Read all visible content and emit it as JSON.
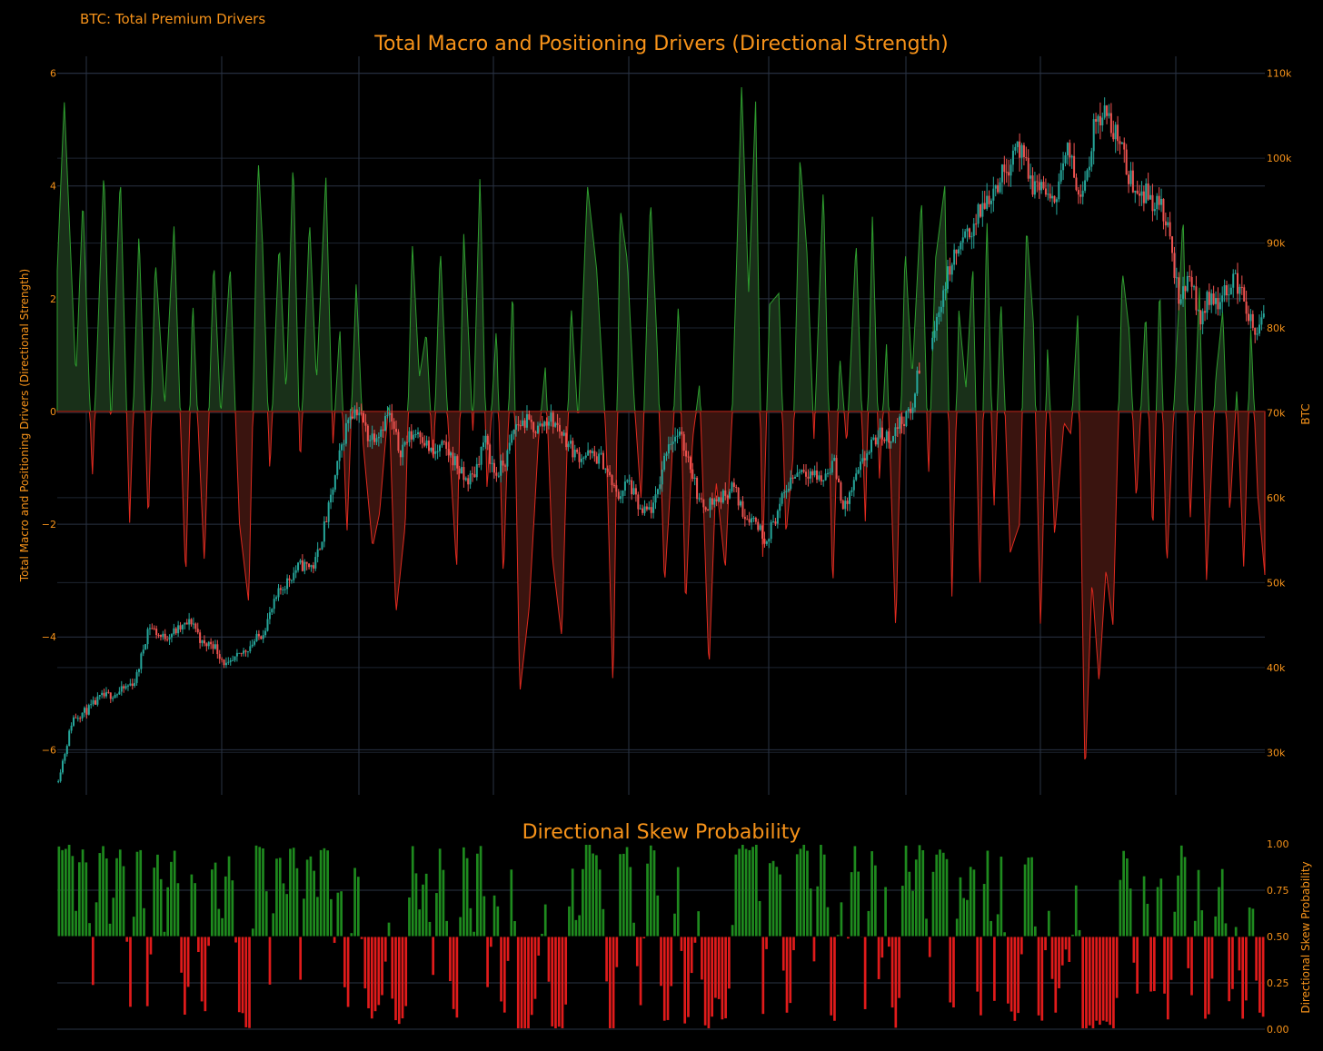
{
  "header": {
    "corner_label": "BTC: Total Premium Drivers"
  },
  "colors": {
    "background": "#000000",
    "title_orange": "#f7931a",
    "grid": "#2a3344",
    "positive_fill": "#193019",
    "positive_line": "#2e9d2e",
    "negative_fill": "#3a140f",
    "negative_line": "#e02a1f",
    "candle_up": "#26a69a",
    "candle_down": "#ef5350",
    "bar_green": "#1e8a1e",
    "bar_red": "#e01b1b"
  },
  "chart_data": [
    {
      "type": "area",
      "title": "Total Macro and Positioning Drivers (Directional Strength)",
      "ylabel": "Total Macro and Positioning Drivers (Directional Strength)",
      "ylim": [
        -6.8,
        6.3
      ],
      "yticks": [
        6,
        4,
        2,
        0,
        -2,
        -4,
        -6
      ],
      "ytick_labels": [
        "6",
        "4",
        "2",
        "0",
        "−2",
        "−4",
        "−6"
      ],
      "zero_line": true,
      "grid": true,
      "anchors_drivers": [
        [
          0,
          2.5
        ],
        [
          3,
          5.5
        ],
        [
          8,
          0.6
        ],
        [
          11,
          3.8
        ],
        [
          15,
          -1.2
        ],
        [
          20,
          4.3
        ],
        [
          23,
          -0.3
        ],
        [
          27,
          4.2
        ],
        [
          31,
          -2.0
        ],
        [
          35,
          3.2
        ],
        [
          39,
          -2.0
        ],
        [
          42,
          2.7
        ],
        [
          46,
          0.1
        ],
        [
          50,
          3.3
        ],
        [
          55,
          -3.0
        ],
        [
          58,
          2.0
        ],
        [
          60,
          0.0
        ],
        [
          63,
          -2.7
        ],
        [
          67,
          2.7
        ],
        [
          70,
          -0.1
        ],
        [
          74,
          2.6
        ],
        [
          78,
          -2.0
        ],
        [
          82,
          -3.4
        ],
        [
          86,
          4.5
        ],
        [
          88,
          2.9
        ],
        [
          91,
          -1.1
        ],
        [
          95,
          3.0
        ],
        [
          98,
          0.3
        ],
        [
          101,
          4.5
        ],
        [
          104,
          -1.0
        ],
        [
          108,
          3.4
        ],
        [
          111,
          0.5
        ],
        [
          115,
          4.2
        ],
        [
          118,
          -0.6
        ],
        [
          121,
          1.5
        ],
        [
          124,
          -2.2
        ],
        [
          128,
          2.3
        ],
        [
          131,
          -0.6
        ],
        [
          135,
          -2.4
        ],
        [
          138,
          -1.8
        ],
        [
          142,
          0.2
        ],
        [
          145,
          -3.6
        ],
        [
          149,
          -2.0
        ],
        [
          152,
          3.0
        ],
        [
          155,
          0.6
        ],
        [
          158,
          1.4
        ],
        [
          161,
          -1.0
        ],
        [
          164,
          2.9
        ],
        [
          167,
          0.0
        ],
        [
          171,
          -2.8
        ],
        [
          174,
          3.2
        ],
        [
          178,
          -0.4
        ],
        [
          181,
          4.2
        ],
        [
          184,
          -1.4
        ],
        [
          188,
          1.5
        ],
        [
          191,
          -3.0
        ],
        [
          195,
          2.3
        ],
        [
          198,
          -5.0
        ],
        [
          202,
          -3.5
        ],
        [
          206,
          -0.5
        ],
        [
          209,
          0.8
        ],
        [
          212,
          -2.6
        ],
        [
          216,
          -4.0
        ],
        [
          220,
          1.9
        ],
        [
          223,
          -0.2
        ],
        [
          227,
          4.0
        ],
        [
          231,
          2.5
        ],
        [
          235,
          -0.5
        ],
        [
          238,
          -5.0
        ],
        [
          241,
          3.6
        ],
        [
          244,
          2.7
        ],
        [
          247,
          0.2
        ],
        [
          250,
          -1.6
        ],
        [
          254,
          3.8
        ],
        [
          257,
          1.0
        ],
        [
          260,
          -3.1
        ],
        [
          263,
          -1.0
        ],
        [
          266,
          2.0
        ],
        [
          269,
          -3.5
        ],
        [
          272,
          -0.5
        ],
        [
          275,
          0.5
        ],
        [
          279,
          -4.6
        ],
        [
          282,
          -1.2
        ],
        [
          286,
          -2.8
        ],
        [
          289,
          0.0
        ],
        [
          293,
          5.8
        ],
        [
          296,
          2.1
        ],
        [
          299,
          5.5
        ],
        [
          302,
          -2.6
        ],
        [
          305,
          1.9
        ],
        [
          309,
          2.1
        ],
        [
          312,
          -2.2
        ],
        [
          315,
          -0.8
        ],
        [
          318,
          4.5
        ],
        [
          321,
          2.8
        ],
        [
          324,
          -0.5
        ],
        [
          328,
          4.0
        ],
        [
          332,
          -3.2
        ],
        [
          335,
          1.0
        ],
        [
          338,
          -0.6
        ],
        [
          342,
          3.0
        ],
        [
          346,
          -2.0
        ],
        [
          349,
          3.5
        ],
        [
          352,
          -1.2
        ],
        [
          355,
          1.2
        ],
        [
          359,
          -3.9
        ],
        [
          363,
          2.9
        ],
        [
          366,
          0.6
        ],
        [
          370,
          3.8
        ],
        [
          373,
          -1.2
        ],
        [
          376,
          2.7
        ],
        [
          380,
          4.0
        ],
        [
          383,
          -3.3
        ],
        [
          386,
          1.8
        ],
        [
          389,
          0.4
        ],
        [
          392,
          2.6
        ],
        [
          395,
          -3.2
        ],
        [
          398,
          3.5
        ],
        [
          401,
          -1.8
        ],
        [
          404,
          2.0
        ],
        [
          408,
          -2.5
        ],
        [
          412,
          -2.0
        ],
        [
          415,
          3.3
        ],
        [
          418,
          1.5
        ],
        [
          421,
          -3.9
        ],
        [
          424,
          1.2
        ],
        [
          427,
          -2.2
        ],
        [
          431,
          -0.2
        ],
        [
          434,
          -0.4
        ],
        [
          437,
          1.8
        ],
        [
          440,
          -6.5
        ],
        [
          443,
          -3.0
        ],
        [
          446,
          -4.8
        ],
        [
          449,
          -2.8
        ],
        [
          452,
          -3.8
        ],
        [
          456,
          2.5
        ],
        [
          459,
          1.4
        ],
        [
          462,
          -1.6
        ],
        [
          466,
          1.8
        ],
        [
          469,
          -2.2
        ],
        [
          472,
          2.3
        ],
        [
          475,
          -2.8
        ],
        [
          478,
          0.0
        ],
        [
          482,
          3.5
        ],
        [
          485,
          -2.0
        ],
        [
          489,
          2.2
        ],
        [
          492,
          -3.0
        ],
        [
          496,
          0.6
        ],
        [
          499,
          1.8
        ],
        [
          502,
          -1.8
        ],
        [
          505,
          0.4
        ],
        [
          508,
          -2.8
        ],
        [
          511,
          1.5
        ],
        [
          514,
          -1.5
        ],
        [
          517,
          -2.9
        ]
      ],
      "anchors_btc": [
        [
          0,
          26500
        ],
        [
          4,
          30500
        ],
        [
          7,
          34000
        ],
        [
          14,
          35000
        ],
        [
          20,
          36500
        ],
        [
          28,
          37000
        ],
        [
          36,
          38500
        ],
        [
          42,
          45000
        ],
        [
          48,
          43500
        ],
        [
          56,
          44500
        ],
        [
          62,
          45500
        ],
        [
          67,
          42500
        ],
        [
          71,
          43000
        ],
        [
          78,
          40000
        ],
        [
          86,
          42000
        ],
        [
          94,
          44000
        ],
        [
          102,
          49000
        ],
        [
          111,
          52000
        ],
        [
          118,
          52000
        ],
        [
          124,
          58000
        ],
        [
          130,
          65500
        ],
        [
          134,
          70000
        ],
        [
          138,
          70500
        ],
        [
          143,
          67000
        ],
        [
          148,
          68000
        ],
        [
          152,
          70000
        ],
        [
          157,
          65500
        ],
        [
          161,
          67000
        ],
        [
          166,
          68000
        ],
        [
          172,
          65000
        ],
        [
          177,
          66000
        ],
        [
          182,
          64500
        ],
        [
          187,
          62000
        ],
        [
          191,
          62500
        ],
        [
          196,
          67000
        ],
        [
          201,
          62500
        ],
        [
          206,
          64500
        ],
        [
          210,
          68500
        ],
        [
          215,
          69000
        ],
        [
          220,
          68000
        ],
        [
          226,
          69500
        ],
        [
          232,
          67500
        ],
        [
          238,
          65000
        ],
        [
          244,
          65000
        ],
        [
          250,
          64500
        ],
        [
          257,
          60000
        ],
        [
          262,
          62000
        ],
        [
          268,
          58000
        ],
        [
          274,
          59000
        ],
        [
          280,
          66500
        ],
        [
          285,
          67500
        ],
        [
          290,
          64500
        ],
        [
          295,
          59000
        ],
        [
          300,
          59500
        ],
        [
          305,
          60000
        ],
        [
          310,
          61500
        ],
        [
          315,
          58000
        ],
        [
          320,
          57500
        ],
        [
          325,
          55000
        ],
        [
          330,
          58000
        ],
        [
          336,
          62000
        ],
        [
          341,
          63500
        ],
        [
          346,
          63000
        ],
        [
          351,
          62000
        ],
        [
          356,
          64500
        ],
        [
          361,
          58500
        ],
        [
          366,
          62000
        ],
        [
          371,
          65000
        ],
        [
          377,
          67500
        ],
        [
          382,
          67000
        ],
        [
          387,
          69000
        ],
        [
          392,
          70000
        ],
        [
          395,
          75000
        ],
        [
          398,
          76000
        ],
        [
          402,
          79000
        ],
        [
          406,
          84000
        ],
        [
          410,
          87500
        ],
        [
          414,
          89500
        ],
        [
          418,
          91000
        ],
        [
          422,
          93000
        ],
        [
          426,
          95000
        ],
        [
          431,
          97000
        ],
        [
          436,
          99000
        ],
        [
          440,
          102000
        ],
        [
          444,
          99000
        ],
        [
          448,
          96500
        ],
        [
          452,
          97000
        ],
        [
          456,
          94000
        ],
        [
          460,
          98000
        ],
        [
          464,
          101000
        ],
        [
          468,
          96000
        ],
        [
          472,
          98000
        ],
        [
          476,
          104000
        ],
        [
          480,
          106000
        ],
        [
          484,
          103000
        ],
        [
          487,
          103000
        ],
        [
          491,
          98000
        ],
        [
          495,
          96500
        ],
        [
          499,
          96000
        ],
        [
          503,
          95000
        ],
        [
          507,
          94000
        ],
        [
          511,
          89500
        ],
        [
          515,
          82500
        ],
        [
          519,
          87000
        ],
        [
          524,
          81000
        ],
        [
          529,
          84000
        ],
        [
          534,
          83000
        ],
        [
          539,
          86000
        ],
        [
          544,
          84000
        ],
        [
          549,
          79000
        ],
        [
          553,
          81000
        ]
      ],
      "btc_axis": {
        "label": "BTC",
        "ylim": [
          25000,
          112000
        ],
        "ticks": [
          110000,
          100000,
          90000,
          80000,
          70000,
          60000,
          50000,
          40000,
          30000
        ],
        "tick_labels": [
          "110k",
          "100k",
          "90k",
          "80k",
          "70k",
          "60k",
          "50k",
          "40k",
          "30k"
        ]
      }
    },
    {
      "type": "bar",
      "title": "Directional Skew Probability",
      "ylabel": "Directional Skew Probability",
      "ylim": [
        0,
        1
      ],
      "yticks": [
        1,
        0.75,
        0.5,
        0.25,
        0
      ],
      "ytick_labels": [
        "1.00",
        "0.75",
        "0.50",
        "0.25",
        "0.00"
      ],
      "baseline": 0.5,
      "grid": true
    }
  ]
}
